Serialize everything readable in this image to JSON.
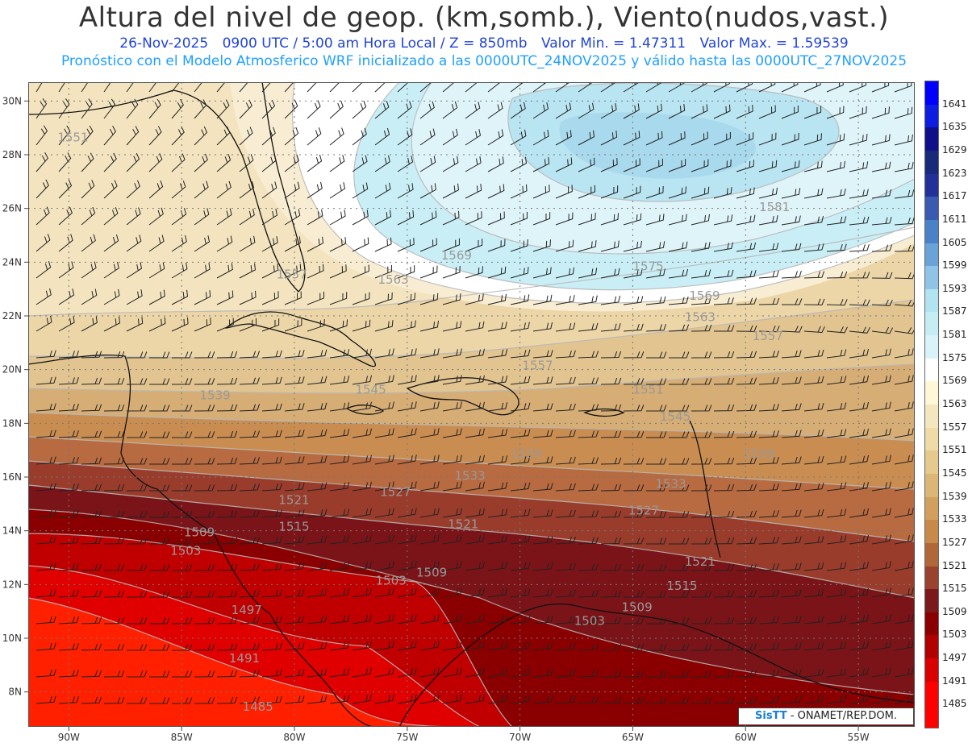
{
  "header": {
    "title": "Altura del nivel de geop. (km,somb.), Viento(nudos,vast.)",
    "date": "26-Nov-2025",
    "time": "0900 UTC / 5:00 am Hora Local / Z = 850mb",
    "min_label": "Valor Min. = 1.47311",
    "max_label": "Valor Max. = 1.59539",
    "forecast_line": "Pronóstico con el Modelo Atmosferico WRF inicializado a las 0000UTC_24NOV2025 y válido hasta las  0000UTC_27NOV2025"
  },
  "axes": {
    "lat_labels": [
      "30N",
      "28N",
      "26N",
      "24N",
      "22N",
      "20N",
      "18N",
      "16N",
      "14N",
      "12N",
      "10N",
      "8N"
    ],
    "lat_values": [
      30,
      28,
      26,
      24,
      22,
      20,
      18,
      16,
      14,
      12,
      10,
      8
    ],
    "lon_labels": [
      "90W",
      "85W",
      "80W",
      "75W",
      "70W",
      "65W",
      "60W",
      "55W"
    ],
    "lon_values": [
      -90,
      -85,
      -80,
      -75,
      -70,
      -65,
      -60,
      -55
    ],
    "lat_range": [
      6.7,
      30.7
    ],
    "lon_range": [
      -91.8,
      -52.5
    ]
  },
  "legend": {
    "levels": [
      "1641",
      "1635",
      "1629",
      "1623",
      "1617",
      "1611",
      "1605",
      "1599",
      "1593",
      "1587",
      "1581",
      "1575",
      "1569",
      "1563",
      "1557",
      "1551",
      "1545",
      "1539",
      "1533",
      "1527",
      "1521",
      "1515",
      "1509",
      "1503",
      "1497",
      "1491",
      "1485"
    ],
    "colors": [
      "#0000ff",
      "#0d1ee0",
      "#0f0f8a",
      "#1a2a7a",
      "#22309a",
      "#3a5bb0",
      "#4a82c8",
      "#6aa3d8",
      "#8fc4e6",
      "#b3e3f0",
      "#c6ecf4",
      "#d9f3f8",
      "#ffffff",
      "#fff7d6",
      "#f4e6be",
      "#eedba8",
      "#e6c98c",
      "#dcb676",
      "#d2a05e",
      "#c88a4a",
      "#b0683a",
      "#9a4230",
      "#7a1a1a",
      "#8a0000",
      "#b00000",
      "#d80000",
      "#ff0000"
    ]
  },
  "contour_labels": [
    {
      "text": "1551",
      "lat": 28.5,
      "lon": -90.5
    },
    {
      "text": "1557",
      "lat": 23.4,
      "lon": -80.8
    },
    {
      "text": "1563",
      "lat": 23.2,
      "lon": -76.3
    },
    {
      "text": "1569",
      "lat": 24.1,
      "lon": -73.5
    },
    {
      "text": "1575",
      "lat": 23.7,
      "lon": -65.0
    },
    {
      "text": "1581",
      "lat": 25.9,
      "lon": -59.4
    },
    {
      "text": "1569",
      "lat": 22.6,
      "lon": -62.5
    },
    {
      "text": "1563",
      "lat": 21.8,
      "lon": -62.7
    },
    {
      "text": "1557",
      "lat": 21.1,
      "lon": -59.7
    },
    {
      "text": "1557",
      "lat": 20.0,
      "lon": -69.9
    },
    {
      "text": "1551",
      "lat": 19.1,
      "lon": -65.0
    },
    {
      "text": "1545",
      "lat": 19.1,
      "lon": -77.3
    },
    {
      "text": "1539",
      "lat": 18.9,
      "lon": -84.2
    },
    {
      "text": "1545",
      "lat": 18.1,
      "lon": -63.8
    },
    {
      "text": "1539",
      "lat": 16.7,
      "lon": -70.4
    },
    {
      "text": "1539",
      "lat": 16.7,
      "lon": -60.1
    },
    {
      "text": "1533",
      "lat": 15.9,
      "lon": -72.9
    },
    {
      "text": "1533",
      "lat": 15.6,
      "lon": -64.0
    },
    {
      "text": "1527",
      "lat": 15.3,
      "lon": -76.2
    },
    {
      "text": "1527",
      "lat": 14.6,
      "lon": -65.2
    },
    {
      "text": "1521",
      "lat": 15.0,
      "lon": -80.7
    },
    {
      "text": "1521",
      "lat": 14.1,
      "lon": -73.2
    },
    {
      "text": "1521",
      "lat": 12.7,
      "lon": -62.7
    },
    {
      "text": "1515",
      "lat": 14.0,
      "lon": -80.7
    },
    {
      "text": "1515",
      "lat": 11.8,
      "lon": -63.5
    },
    {
      "text": "1509",
      "lat": 13.8,
      "lon": -84.9
    },
    {
      "text": "1509",
      "lat": 12.3,
      "lon": -74.6
    },
    {
      "text": "1509",
      "lat": 11.0,
      "lon": -65.5
    },
    {
      "text": "1503",
      "lat": 13.1,
      "lon": -85.5
    },
    {
      "text": "1503",
      "lat": 12.0,
      "lon": -76.4
    },
    {
      "text": "1503",
      "lat": 10.5,
      "lon": -67.6
    },
    {
      "text": "1497",
      "lat": 10.9,
      "lon": -82.8
    },
    {
      "text": "1491",
      "lat": 9.1,
      "lon": -82.9
    },
    {
      "text": "1485",
      "lat": 7.3,
      "lon": -82.3
    }
  ],
  "credit": {
    "brand": "SisTT",
    "text": " - ONAMET/REP.DOM."
  }
}
